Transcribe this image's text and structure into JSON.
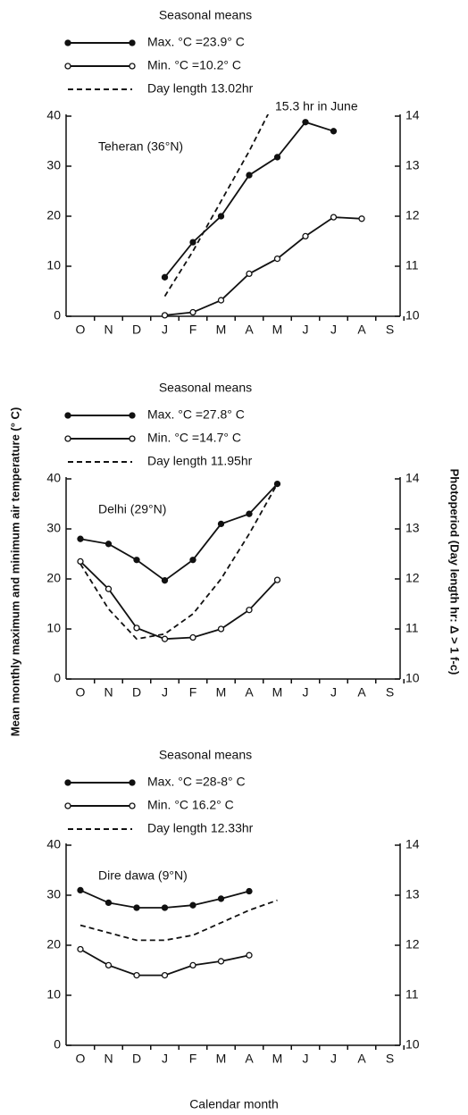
{
  "axes": {
    "ylabel": "Mean monthly maximum and minimum air temperature (° C)",
    "y2label": "Photoperiod (Day length hr: Δ > 1 f-c)",
    "xlabel": "Calendar month"
  },
  "chart_data": [
    {
      "type": "line",
      "title": "Teheran (36°N)",
      "legend_title": "Seasonal means",
      "categories": [
        "O",
        "N",
        "D",
        "J",
        "F",
        "M",
        "A",
        "M",
        "J",
        "J",
        "A",
        "S"
      ],
      "ylim": [
        0,
        40
      ],
      "yticks": [
        0,
        10,
        20,
        30,
        40
      ],
      "y2lim": [
        10,
        14
      ],
      "y2ticks": [
        10,
        11,
        12,
        13,
        14
      ],
      "annotation": "15.3 hr in June",
      "series": [
        {
          "name": "Max. °C =23.9° C",
          "color": "#111111",
          "marker": "filled",
          "dashed": false,
          "values": [
            null,
            null,
            null,
            7.8,
            14.8,
            20,
            28.2,
            31.8,
            38.8,
            37,
            null,
            null
          ]
        },
        {
          "name": "Min. °C =10.2° C",
          "color": "#111111",
          "marker": "open",
          "dashed": false,
          "values": [
            null,
            null,
            null,
            0.2,
            0.8,
            3.2,
            8.5,
            11.5,
            16,
            19.8,
            19.5,
            null
          ]
        },
        {
          "name": "Day length 13.02hr",
          "color": "#111111",
          "marker": "none",
          "dashed": true,
          "axis": "y2",
          "values": [
            null,
            null,
            null,
            10.4,
            11.3,
            12.3,
            13.3,
            14.4,
            null,
            null,
            null,
            null
          ]
        }
      ]
    },
    {
      "type": "line",
      "title": "Delhi (29°N)",
      "legend_title": "Seasonal means",
      "categories": [
        "O",
        "N",
        "D",
        "J",
        "F",
        "M",
        "A",
        "M",
        "J",
        "J",
        "A",
        "S"
      ],
      "ylim": [
        0,
        40
      ],
      "yticks": [
        0,
        10,
        20,
        30,
        40
      ],
      "y2lim": [
        10,
        14
      ],
      "y2ticks": [
        10,
        11,
        12,
        13,
        14
      ],
      "series": [
        {
          "name": "Max. °C =27.8° C",
          "color": "#111111",
          "marker": "filled",
          "dashed": false,
          "values": [
            28,
            27,
            23.8,
            19.7,
            23.8,
            31,
            33,
            39,
            null,
            null,
            null,
            null
          ]
        },
        {
          "name": "Min. °C =14.7° C",
          "color": "#111111",
          "marker": "open",
          "dashed": false,
          "values": [
            23.5,
            18,
            10.2,
            8,
            8.3,
            10,
            13.8,
            19.8,
            null,
            null,
            null,
            null
          ]
        },
        {
          "name": "Day length 11.95hr",
          "color": "#111111",
          "marker": "none",
          "dashed": true,
          "axis": "y2",
          "values": [
            12.3,
            11.4,
            10.8,
            10.9,
            11.3,
            12.0,
            12.9,
            13.9,
            null,
            null,
            null,
            null
          ]
        }
      ]
    },
    {
      "type": "line",
      "title": "Dire dawa (9°N)",
      "legend_title": "Seasonal means",
      "categories": [
        "O",
        "N",
        "D",
        "J",
        "F",
        "M",
        "A",
        "M",
        "J",
        "J",
        "A",
        "S"
      ],
      "ylim": [
        0,
        40
      ],
      "yticks": [
        0,
        10,
        20,
        30,
        40
      ],
      "y2lim": [
        10,
        14
      ],
      "y2ticks": [
        10,
        11,
        12,
        13,
        14
      ],
      "series": [
        {
          "name": "Max. °C =28-8° C",
          "color": "#111111",
          "marker": "filled",
          "dashed": false,
          "values": [
            31,
            28.5,
            27.5,
            27.5,
            28,
            29.3,
            30.8,
            null,
            null,
            null,
            null,
            null
          ]
        },
        {
          "name": "Min. °C 16.2° C",
          "color": "#111111",
          "marker": "open",
          "dashed": false,
          "values": [
            19.2,
            16,
            14,
            14,
            16,
            16.8,
            18,
            null,
            null,
            null,
            null,
            null
          ]
        },
        {
          "name": "Day length 12.33hr",
          "color": "#111111",
          "marker": "none",
          "dashed": true,
          "axis": "y2",
          "values": [
            12.4,
            12.25,
            12.1,
            12.1,
            12.2,
            12.45,
            12.7,
            12.9,
            null,
            null,
            null,
            null
          ]
        }
      ]
    }
  ]
}
